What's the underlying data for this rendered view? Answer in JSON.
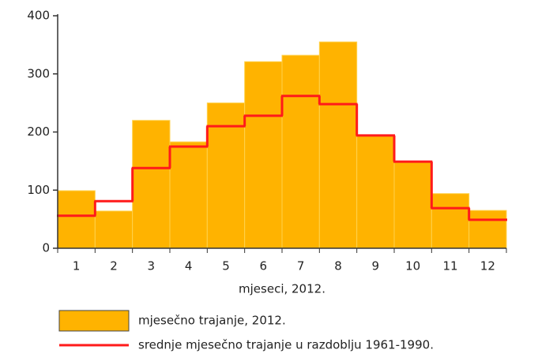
{
  "chart_data": {
    "type": "bar",
    "xlabel": "mjeseci, 2012.",
    "categories": [
      "1",
      "2",
      "3",
      "4",
      "5",
      "6",
      "7",
      "8",
      "9",
      "10",
      "11",
      "12"
    ],
    "series": [
      {
        "name": "mjesečno trajanje, 2012.",
        "type": "bar",
        "color": "#ffb300",
        "values": [
          99,
          64,
          220,
          183,
          250,
          321,
          332,
          355,
          194,
          149,
          94,
          65
        ]
      },
      {
        "name": "srednje mjesečno trajanje u razdoblju 1961-1990.",
        "type": "step",
        "color": "#ff1a1a",
        "values": [
          56,
          81,
          138,
          175,
          210,
          228,
          262,
          248,
          194,
          149,
          69,
          49
        ]
      }
    ],
    "ylim": [
      0,
      400
    ],
    "yticks": [
      0,
      100,
      200,
      300,
      400
    ],
    "grid": false,
    "legend": "bottom"
  }
}
